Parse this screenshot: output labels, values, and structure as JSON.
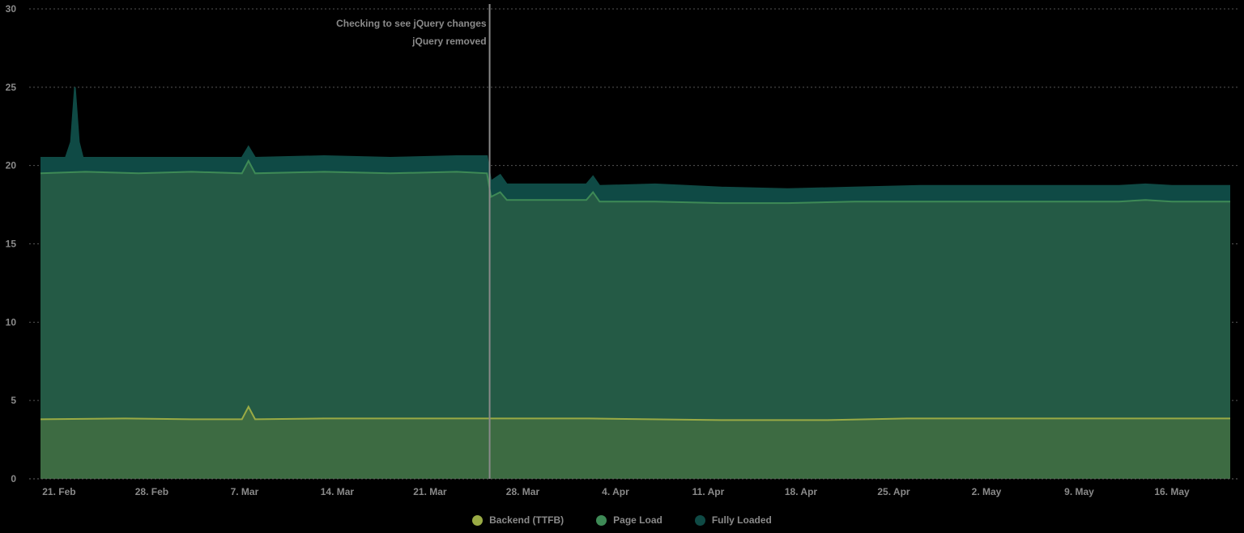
{
  "chart_data": {
    "type": "area",
    "title": "",
    "xlabel": "",
    "ylabel": "",
    "ylim": [
      0,
      30
    ],
    "yticks": [
      0,
      5,
      10,
      15,
      20,
      25,
      30
    ],
    "grid": true,
    "legend_position": "bottom-center",
    "x_tick_labels": [
      "21. Feb",
      "28. Feb",
      "7. Mar",
      "14. Mar",
      "21. Mar",
      "28. Mar",
      "4. Apr",
      "11. Apr",
      "18. Apr",
      "25. Apr",
      "2. May",
      "9. May",
      "16. May"
    ],
    "x_range_days": [
      -1.4,
      88.4
    ],
    "x_tick_days": [
      0,
      7,
      14,
      21,
      28,
      35,
      42,
      49,
      56,
      63,
      70,
      77,
      84
    ],
    "annotation": {
      "day": 32.5,
      "labels": [
        "Checking to see jQuery changes",
        "jQuery removed"
      ]
    },
    "series": [
      {
        "name": "Backend (TTFB)",
        "color": "#9aab45",
        "fill": "#3d6b42",
        "segments_note": "approx constant ~3.8s with spike to ~4.6 at 7 Mar",
        "points": [
          [
            -1.4,
            3.8
          ],
          [
            5,
            3.85
          ],
          [
            10,
            3.8
          ],
          [
            13.8,
            3.8
          ],
          [
            14.3,
            4.6
          ],
          [
            14.8,
            3.8
          ],
          [
            20,
            3.85
          ],
          [
            28,
            3.85
          ],
          [
            32.5,
            3.85
          ],
          [
            40,
            3.85
          ],
          [
            50,
            3.75
          ],
          [
            58,
            3.75
          ],
          [
            64,
            3.85
          ],
          [
            75,
            3.85
          ],
          [
            88.4,
            3.85
          ]
        ]
      },
      {
        "name": "Page Load",
        "color": "#3e8a56",
        "fill": "#245a45",
        "points": [
          [
            -1.4,
            19.5
          ],
          [
            2,
            19.6
          ],
          [
            6,
            19.5
          ],
          [
            10,
            19.6
          ],
          [
            13.8,
            19.5
          ],
          [
            14.3,
            20.3
          ],
          [
            14.8,
            19.5
          ],
          [
            20,
            19.6
          ],
          [
            25,
            19.5
          ],
          [
            30,
            19.6
          ],
          [
            32.3,
            19.5
          ],
          [
            32.6,
            18.0
          ],
          [
            33.3,
            18.3
          ],
          [
            33.8,
            17.8
          ],
          [
            38,
            17.8
          ],
          [
            39.8,
            17.8
          ],
          [
            40.3,
            18.3
          ],
          [
            40.8,
            17.7
          ],
          [
            45,
            17.7
          ],
          [
            50,
            17.6
          ],
          [
            55,
            17.6
          ],
          [
            60,
            17.7
          ],
          [
            65,
            17.7
          ],
          [
            70,
            17.7
          ],
          [
            80,
            17.7
          ],
          [
            82,
            17.8
          ],
          [
            84,
            17.7
          ],
          [
            88.4,
            17.7
          ]
        ]
      },
      {
        "name": "Fully Loaded",
        "color": "#0f4a45",
        "fill": "#0f4a45",
        "points": [
          [
            -1.4,
            20.5
          ],
          [
            0.5,
            20.5
          ],
          [
            0.9,
            21.5
          ],
          [
            1.2,
            25.0
          ],
          [
            1.5,
            21.5
          ],
          [
            1.8,
            20.5
          ],
          [
            6,
            20.5
          ],
          [
            10,
            20.5
          ],
          [
            13.8,
            20.5
          ],
          [
            14.3,
            21.2
          ],
          [
            14.8,
            20.5
          ],
          [
            20,
            20.6
          ],
          [
            25,
            20.5
          ],
          [
            30,
            20.6
          ],
          [
            32.3,
            20.6
          ],
          [
            32.6,
            19.0
          ],
          [
            33.3,
            19.4
          ],
          [
            33.8,
            18.8
          ],
          [
            38,
            18.8
          ],
          [
            39.8,
            18.8
          ],
          [
            40.3,
            19.3
          ],
          [
            40.8,
            18.7
          ],
          [
            45,
            18.8
          ],
          [
            50,
            18.6
          ],
          [
            55,
            18.5
          ],
          [
            60,
            18.6
          ],
          [
            65,
            18.7
          ],
          [
            70,
            18.7
          ],
          [
            80,
            18.7
          ],
          [
            82,
            18.8
          ],
          [
            84,
            18.7
          ],
          [
            88.4,
            18.7
          ]
        ]
      }
    ]
  },
  "legend": {
    "items": [
      {
        "label": "Backend (TTFB)",
        "color": "#9aab45"
      },
      {
        "label": "Page Load",
        "color": "#3e8a56"
      },
      {
        "label": "Fully Loaded",
        "color": "#0f4a45"
      }
    ]
  }
}
